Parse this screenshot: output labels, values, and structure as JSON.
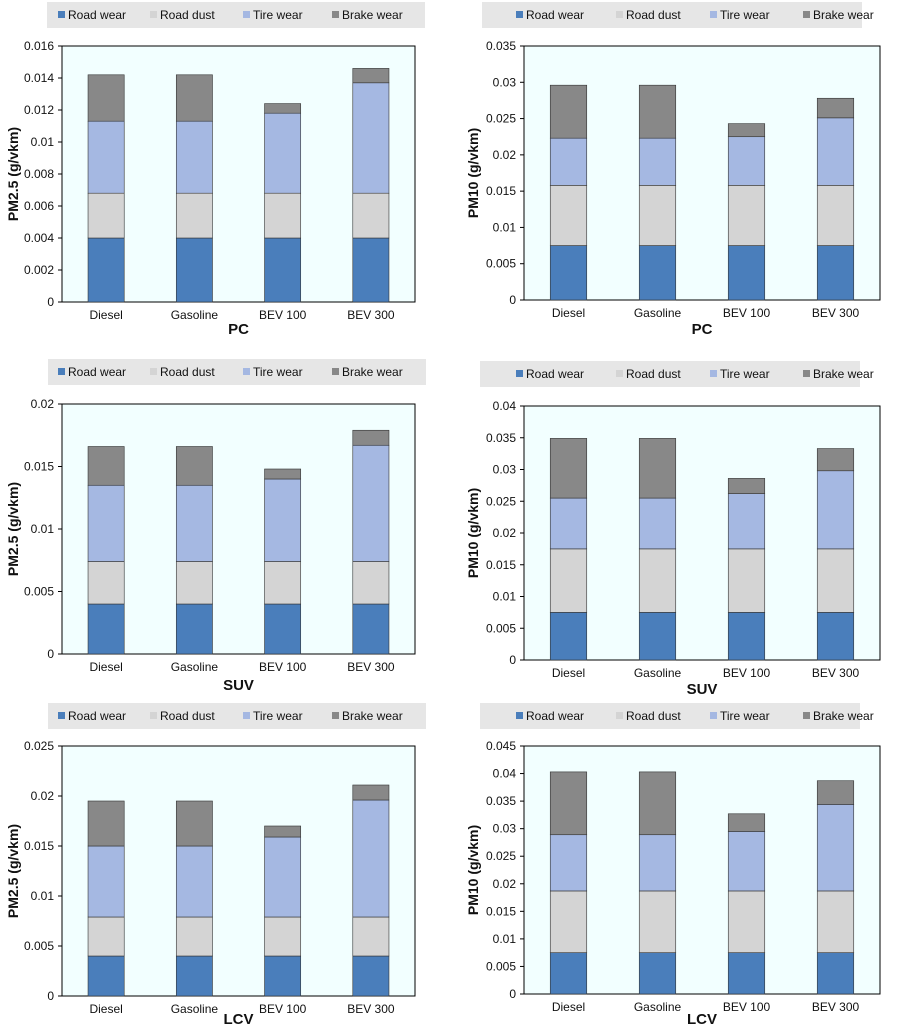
{
  "colors": {
    "road_wear": "#4a7ebb",
    "road_dust": "#d4d4d4",
    "tire_wear": "#a5b8e2",
    "brake_wear": "#888888",
    "plot_bg": "#f2ffff",
    "legend_bg": "#e6e6e6"
  },
  "legend": [
    "Road wear",
    "Road dust",
    "Tire wear",
    "Brake wear"
  ],
  "chart_data": [
    {
      "type": "bar",
      "stacked": true,
      "title": "",
      "xlabel": "PC",
      "ylabel": "PM2.5 (g/vkm)",
      "categories": [
        "Diesel",
        "Gasoline",
        "BEV 100",
        "BEV 300"
      ],
      "ylim": [
        0,
        0.016
      ],
      "yticks": [
        "0",
        "0.002",
        "0.004",
        "0.006",
        "0.008",
        "0.01",
        "0.012",
        "0.014",
        "0.016"
      ],
      "series": [
        {
          "name": "Road wear",
          "values": [
            0.004,
            0.004,
            0.004,
            0.004
          ]
        },
        {
          "name": "Road dust",
          "values": [
            0.0028,
            0.0028,
            0.0028,
            0.0028
          ]
        },
        {
          "name": "Tire wear",
          "values": [
            0.0045,
            0.0045,
            0.005,
            0.0069
          ]
        },
        {
          "name": "Brake wear",
          "values": [
            0.0029,
            0.0029,
            0.0006,
            0.0009
          ]
        }
      ]
    },
    {
      "type": "bar",
      "stacked": true,
      "title": "",
      "xlabel": "PC",
      "ylabel": "PM10 (g/vkm)",
      "categories": [
        "Diesel",
        "Gasoline",
        "BEV 100",
        "BEV 300"
      ],
      "ylim": [
        0,
        0.035
      ],
      "yticks": [
        "0",
        "0.005",
        "0.01",
        "0.015",
        "0.02",
        "0.025",
        "0.03",
        "0.035"
      ],
      "series": [
        {
          "name": "Road wear",
          "values": [
            0.0075,
            0.0075,
            0.0075,
            0.0075
          ]
        },
        {
          "name": "Road dust",
          "values": [
            0.0083,
            0.0083,
            0.0083,
            0.0083
          ]
        },
        {
          "name": "Tire wear",
          "values": [
            0.0065,
            0.0065,
            0.0067,
            0.0093
          ]
        },
        {
          "name": "Brake wear",
          "values": [
            0.0073,
            0.0073,
            0.0018,
            0.0027
          ]
        }
      ]
    },
    {
      "type": "bar",
      "stacked": true,
      "title": "",
      "xlabel": "SUV",
      "ylabel": "PM2.5 (g/vkm)",
      "categories": [
        "Diesel",
        "Gasoline",
        "BEV 100",
        "BEV 300"
      ],
      "ylim": [
        0,
        0.02
      ],
      "yticks": [
        "0",
        "0.005",
        "0.01",
        "0.015",
        "0.02"
      ],
      "series": [
        {
          "name": "Road wear",
          "values": [
            0.004,
            0.004,
            0.004,
            0.004
          ]
        },
        {
          "name": "Road dust",
          "values": [
            0.0034,
            0.0034,
            0.0034,
            0.0034
          ]
        },
        {
          "name": "Tire wear",
          "values": [
            0.0061,
            0.0061,
            0.0066,
            0.0093
          ]
        },
        {
          "name": "Brake wear",
          "values": [
            0.0031,
            0.0031,
            0.0008,
            0.0012
          ]
        }
      ]
    },
    {
      "type": "bar",
      "stacked": true,
      "title": "",
      "xlabel": "SUV",
      "ylabel": "PM10 (g/vkm)",
      "categories": [
        "Diesel",
        "Gasoline",
        "BEV 100",
        "BEV 300"
      ],
      "ylim": [
        0,
        0.04
      ],
      "yticks": [
        "0",
        "0.005",
        "0.01",
        "0.015",
        "0.02",
        "0.025",
        "0.03",
        "0.035",
        "0.04"
      ],
      "series": [
        {
          "name": "Road wear",
          "values": [
            0.0075,
            0.0075,
            0.0075,
            0.0075
          ]
        },
        {
          "name": "Road dust",
          "values": [
            0.01,
            0.01,
            0.01,
            0.01
          ]
        },
        {
          "name": "Tire wear",
          "values": [
            0.008,
            0.008,
            0.0087,
            0.0123
          ]
        },
        {
          "name": "Brake wear",
          "values": [
            0.0094,
            0.0094,
            0.0024,
            0.0035
          ]
        }
      ]
    },
    {
      "type": "bar",
      "stacked": true,
      "title": "",
      "xlabel": "LCV",
      "ylabel": "PM2.5 (g/vkm)",
      "categories": [
        "Diesel",
        "Gasoline",
        "BEV 100",
        "BEV 300"
      ],
      "ylim": [
        0,
        0.025
      ],
      "yticks": [
        "0",
        "0.005",
        "0.01",
        "0.015",
        "0.02",
        "0.025"
      ],
      "series": [
        {
          "name": "Road wear",
          "values": [
            0.004,
            0.004,
            0.004,
            0.004
          ]
        },
        {
          "name": "Road dust",
          "values": [
            0.0039,
            0.0039,
            0.0039,
            0.0039
          ]
        },
        {
          "name": "Tire wear",
          "values": [
            0.0071,
            0.0071,
            0.008,
            0.0117
          ]
        },
        {
          "name": "Brake wear",
          "values": [
            0.0045,
            0.0045,
            0.0011,
            0.0015
          ]
        }
      ]
    },
    {
      "type": "bar",
      "stacked": true,
      "title": "",
      "xlabel": "LCV",
      "ylabel": "PM10 (g/vkm)",
      "categories": [
        "Diesel",
        "Gasoline",
        "BEV 100",
        "BEV 300"
      ],
      "ylim": [
        0,
        0.045
      ],
      "yticks": [
        "0",
        "0.005",
        "0.01",
        "0.015",
        "0.02",
        "0.025",
        "0.03",
        "0.035",
        "0.04",
        "0.045"
      ],
      "series": [
        {
          "name": "Road wear",
          "values": [
            0.0075,
            0.0075,
            0.0075,
            0.0075
          ]
        },
        {
          "name": "Road dust",
          "values": [
            0.0112,
            0.0112,
            0.0112,
            0.0112
          ]
        },
        {
          "name": "Tire wear",
          "values": [
            0.0102,
            0.0102,
            0.0108,
            0.0157
          ]
        },
        {
          "name": "Brake wear",
          "values": [
            0.0114,
            0.0114,
            0.0032,
            0.0043
          ]
        }
      ]
    }
  ]
}
